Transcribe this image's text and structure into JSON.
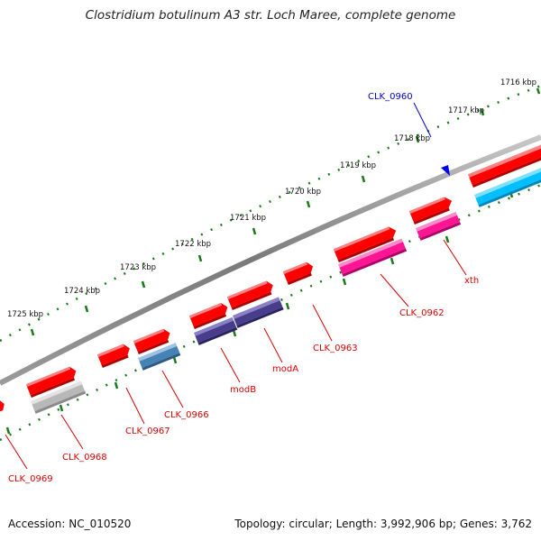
{
  "title": "Clostridium botulinum A3 str. Loch Maree, complete genome",
  "accession": "Accession: NC_010520",
  "topology": "Topology: circular; Length: 3,992,906 bp; Genes: 3,762",
  "ruler_labels": [
    "1716 kbp",
    "1717 kbp",
    "1718 kbp",
    "1719 kbp",
    "1720 kbp",
    "1721 kbp",
    "1722 kbp",
    "1723 kbp",
    "1724 kbp",
    "1725 kbp"
  ],
  "gene_labels": [
    "CLK_0960",
    "xth",
    "CLK_0962",
    "CLK_0963",
    "modA",
    "modB",
    "CLK_0966",
    "CLK_0967",
    "CLK_0968",
    "CLK_0969"
  ],
  "colors": {
    "ruler_tick": "#1a7a1a",
    "backbone": "#8a8a8a",
    "gene_red": "#ff0000",
    "label_red": "#dd0000",
    "label_blue": "#0000cc",
    "cyan": "#00bfff",
    "magenta": "#ff1493",
    "purple": "#483d8b",
    "steel": "#4682b4",
    "gray": "#b8b8b8"
  }
}
